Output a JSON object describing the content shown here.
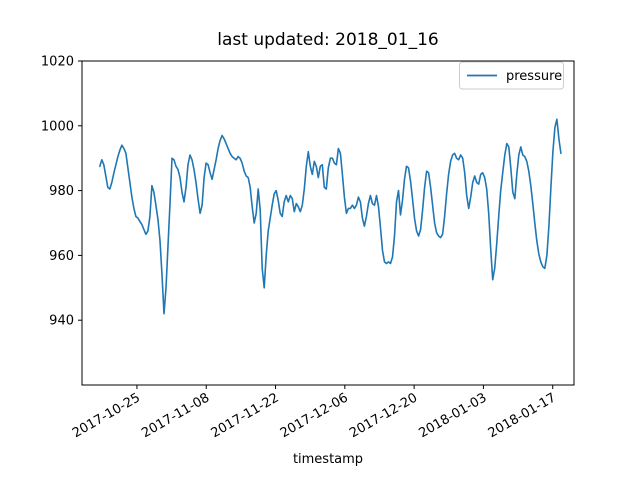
{
  "figure": {
    "background": "#ffffff",
    "text_color": "#000000",
    "spine_color": "#000000",
    "legend_border_color": "#cccccc"
  },
  "chart_data": {
    "type": "line",
    "title": "last updated: 2018_01_16",
    "xlabel": "timestamp",
    "ylabel": "",
    "grid": false,
    "legend_position": "upper right",
    "ylim": [
      920,
      1020
    ],
    "y_ticks": [
      1020,
      1000,
      980,
      960,
      940
    ],
    "xlim_days": [
      -11.1,
      88.3
    ],
    "x_ticks": [
      {
        "label": "2017-10-25",
        "day": 0
      },
      {
        "label": "2017-11-08",
        "day": 14
      },
      {
        "label": "2017-11-22",
        "day": 28
      },
      {
        "label": "2017-12-06",
        "day": 42
      },
      {
        "label": "2017-12-20",
        "day": 56
      },
      {
        "label": "2018-01-03",
        "day": 70
      },
      {
        "label": "2018-01-17",
        "day": 84
      }
    ],
    "series": [
      {
        "name": "pressure",
        "color": "#1f77b4",
        "x_start_day": -7.5,
        "x_step_day": 0.405,
        "values": [
          987.5,
          989.5,
          988,
          984.5,
          981,
          980.5,
          982.5,
          985.5,
          988,
          990.5,
          992.5,
          994,
          993,
          991.5,
          987,
          982.5,
          978,
          974.5,
          972,
          971.5,
          970.5,
          969.5,
          968,
          966.5,
          967.5,
          972,
          981.5,
          979.5,
          975.5,
          971,
          964.5,
          954,
          942,
          950,
          963,
          976,
          990,
          989.5,
          987.5,
          986.5,
          984,
          979.5,
          976.5,
          981,
          988,
          991,
          989.5,
          986.5,
          982.5,
          977.5,
          973,
          975.5,
          984,
          988.5,
          988,
          985.5,
          983.5,
          986.5,
          989.5,
          993,
          995.5,
          997,
          996,
          994.5,
          993,
          991.5,
          990.5,
          990,
          989.5,
          990.5,
          990,
          988.5,
          986,
          984.5,
          984,
          981,
          975,
          970,
          973,
          980.5,
          974,
          956,
          950,
          960,
          967.5,
          971.5,
          975.5,
          979,
          980,
          977,
          973,
          972,
          976.5,
          978.5,
          976.5,
          978.5,
          977.5,
          973.5,
          976,
          975,
          973.5,
          975.5,
          980.5,
          987.5,
          992,
          987.5,
          985,
          989,
          987.5,
          984,
          987.5,
          988,
          981,
          980.5,
          987,
          990,
          990,
          988.5,
          988,
          993,
          991.5,
          985,
          978,
          973,
          974.5,
          974.5,
          975.5,
          974.5,
          975.5,
          978,
          976.5,
          971.5,
          969,
          972,
          976,
          978.5,
          976,
          975.5,
          978.5,
          975,
          968.5,
          961.5,
          958,
          957.5,
          958,
          957.5,
          959.5,
          966,
          976.5,
          980,
          972.5,
          977,
          983.5,
          987.5,
          987,
          983,
          977.5,
          971.5,
          967.5,
          966,
          968,
          974,
          981,
          986,
          985.5,
          981,
          975.5,
          970,
          967,
          966,
          965.5,
          966.5,
          972,
          979,
          985,
          989,
          991,
          991.5,
          990,
          989.5,
          991,
          990,
          985.5,
          978.5,
          974.5,
          978,
          982.5,
          984.5,
          982.5,
          982,
          985,
          985.5,
          984,
          980.5,
          973,
          962,
          952.5,
          956,
          963.5,
          972,
          980,
          985.5,
          991,
          994.5,
          993.5,
          987,
          979.5,
          977.5,
          985,
          991,
          993.5,
          991,
          990.5,
          989,
          986,
          981.5,
          976,
          970,
          964.5,
          960.5,
          958,
          956.5,
          956,
          960,
          969,
          981,
          992,
          999.5,
          1002,
          996,
          991.5
        ]
      }
    ]
  }
}
